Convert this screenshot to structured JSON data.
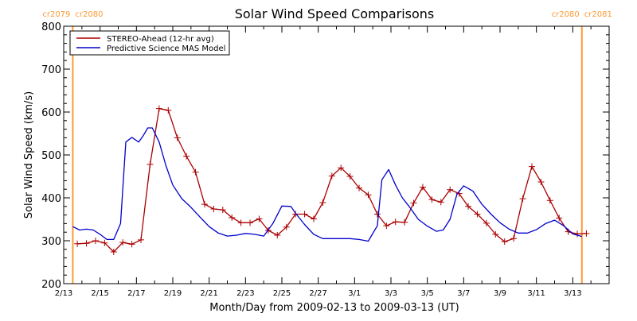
{
  "chart_data": {
    "type": "line",
    "title": "Solar Wind Speed Comparisons",
    "xlabel": "Month/Day from 2009-02-13 to 2009-03-13 (UT)",
    "ylabel": "Solar Wind Speed (km/s)",
    "ylim": [
      200,
      800
    ],
    "xlim": [
      "2009-02-13",
      "2009-03-15"
    ],
    "yticks": [
      200,
      300,
      400,
      500,
      600,
      700,
      800
    ],
    "xticks": [
      {
        "date": "2009-02-13",
        "label": "2/13"
      },
      {
        "date": "2009-02-15",
        "label": "2/15"
      },
      {
        "date": "2009-02-17",
        "label": "2/17"
      },
      {
        "date": "2009-02-19",
        "label": "2/19"
      },
      {
        "date": "2009-02-21",
        "label": "2/21"
      },
      {
        "date": "2009-02-23",
        "label": "2/23"
      },
      {
        "date": "2009-02-25",
        "label": "2/25"
      },
      {
        "date": "2009-02-27",
        "label": "2/27"
      },
      {
        "date": "2009-03-01",
        "label": "3/1"
      },
      {
        "date": "2009-03-03",
        "label": "3/3"
      },
      {
        "date": "2009-03-05",
        "label": "3/5"
      },
      {
        "date": "2009-03-07",
        "label": "3/7"
      },
      {
        "date": "2009-03-09",
        "label": "3/9"
      },
      {
        "date": "2009-03-11",
        "label": "3/11"
      },
      {
        "date": "2009-03-13",
        "label": "3/13"
      }
    ],
    "grid": false,
    "legend_position": "top-left",
    "boundaries": [
      {
        "date": "2009-02-13 12:00",
        "left_label": "cr2079",
        "right_label": "cr2080",
        "color": "#ff9933"
      },
      {
        "date": "2009-03-13 12:00",
        "left_label": "cr2080",
        "right_label": "cr2081",
        "color": "#ff9933"
      }
    ],
    "series": [
      {
        "name": "STEREO-Ahead (12-hr avg)",
        "color": "#aa0000",
        "marker": "+",
        "x": [
          "2009-02-13 18:00",
          "2009-02-14 06:00",
          "2009-02-14 18:00",
          "2009-02-15 06:00",
          "2009-02-15 18:00",
          "2009-02-16 06:00",
          "2009-02-16 18:00",
          "2009-02-17 06:00",
          "2009-02-17 18:00",
          "2009-02-18 06:00",
          "2009-02-18 18:00",
          "2009-02-19 06:00",
          "2009-02-19 18:00",
          "2009-02-20 06:00",
          "2009-02-20 18:00",
          "2009-02-21 06:00",
          "2009-02-21 18:00",
          "2009-02-22 06:00",
          "2009-02-22 18:00",
          "2009-02-23 06:00",
          "2009-02-23 18:00",
          "2009-02-24 06:00",
          "2009-02-24 18:00",
          "2009-02-25 06:00",
          "2009-02-25 18:00",
          "2009-02-26 06:00",
          "2009-02-26 18:00",
          "2009-02-27 06:00",
          "2009-02-27 18:00",
          "2009-02-28 06:00",
          "2009-02-28 18:00",
          "2009-03-01 06:00",
          "2009-03-01 18:00",
          "2009-03-02 06:00",
          "2009-03-02 18:00",
          "2009-03-03 06:00",
          "2009-03-03 18:00",
          "2009-03-04 06:00",
          "2009-03-04 18:00",
          "2009-03-05 06:00",
          "2009-03-05 18:00",
          "2009-03-06 06:00",
          "2009-03-06 18:00",
          "2009-03-07 06:00",
          "2009-03-07 18:00",
          "2009-03-08 06:00",
          "2009-03-08 18:00",
          "2009-03-09 06:00",
          "2009-03-09 18:00",
          "2009-03-10 06:00",
          "2009-03-10 18:00",
          "2009-03-11 06:00",
          "2009-03-11 18:00",
          "2009-03-12 06:00",
          "2009-03-12 18:00",
          "2009-03-13 06:00",
          "2009-03-13 18:00"
        ],
        "y": [
          293,
          294,
          300,
          295,
          274,
          296,
          292,
          302,
          478,
          608,
          604,
          540,
          497,
          460,
          385,
          374,
          372,
          354,
          342,
          342,
          351,
          324,
          313,
          332,
          362,
          362,
          351,
          389,
          451,
          470,
          450,
          423,
          407,
          362,
          335,
          344,
          343,
          388,
          425,
          396,
          390,
          419,
          410,
          380,
          362,
          341,
          315,
          298,
          305,
          398,
          473,
          437,
          394,
          353,
          321,
          316,
          317
        ]
      },
      {
        "name": "Predictive Science MAS Model",
        "color": "#0000cc",
        "marker": "",
        "x": [
          "2009-02-13 12:00",
          "2009-02-13 21:00",
          "2009-02-14 06:00",
          "2009-02-14 15:00",
          "2009-02-15 00:00",
          "2009-02-15 09:00",
          "2009-02-15 18:00",
          "2009-02-16 03:00",
          "2009-02-16 10:00",
          "2009-02-16 18:00",
          "2009-02-17 03:00",
          "2009-02-17 09:00",
          "2009-02-17 15:00",
          "2009-02-17 21:00",
          "2009-02-18 06:00",
          "2009-02-18 15:00",
          "2009-02-19 00:00",
          "2009-02-19 12:00",
          "2009-02-20 00:00",
          "2009-02-20 12:00",
          "2009-02-21 00:00",
          "2009-02-21 12:00",
          "2009-02-22 00:00",
          "2009-02-22 12:00",
          "2009-02-23 00:00",
          "2009-02-23 12:00",
          "2009-02-24 00:00",
          "2009-02-24 12:00",
          "2009-02-25 00:00",
          "2009-02-25 12:00",
          "2009-02-25 18:00",
          "2009-02-26 06:00",
          "2009-02-26 18:00",
          "2009-02-27 06:00",
          "2009-02-27 18:00",
          "2009-02-28 06:00",
          "2009-02-28 18:00",
          "2009-03-01 06:00",
          "2009-03-01 18:00",
          "2009-03-02 06:00",
          "2009-03-02 12:00",
          "2009-03-02 21:00",
          "2009-03-03 06:00",
          "2009-03-03 15:00",
          "2009-03-04 00:00",
          "2009-03-04 12:00",
          "2009-03-05 00:00",
          "2009-03-05 12:00",
          "2009-03-05 21:00",
          "2009-03-06 06:00",
          "2009-03-06 15:00",
          "2009-03-07 00:00",
          "2009-03-07 12:00",
          "2009-03-08 00:00",
          "2009-03-08 12:00",
          "2009-03-09 00:00",
          "2009-03-09 12:00",
          "2009-03-10 00:00",
          "2009-03-10 12:00",
          "2009-03-11 00:00",
          "2009-03-11 12:00",
          "2009-03-12 00:00",
          "2009-03-12 12:00",
          "2009-03-13 00:00",
          "2009-03-13 12:00"
        ],
        "y": [
          333,
          325,
          327,
          325,
          315,
          303,
          303,
          340,
          530,
          541,
          530,
          545,
          563,
          563,
          530,
          475,
          430,
          398,
          378,
          355,
          333,
          318,
          311,
          313,
          317,
          315,
          311,
          340,
          381,
          380,
          364,
          338,
          315,
          305,
          305,
          305,
          305,
          303,
          299,
          335,
          442,
          466,
          430,
          400,
          380,
          350,
          334,
          322,
          325,
          350,
          408,
          428,
          416,
          385,
          362,
          342,
          327,
          318,
          318,
          326,
          340,
          348,
          335,
          316,
          310
        ]
      }
    ]
  }
}
